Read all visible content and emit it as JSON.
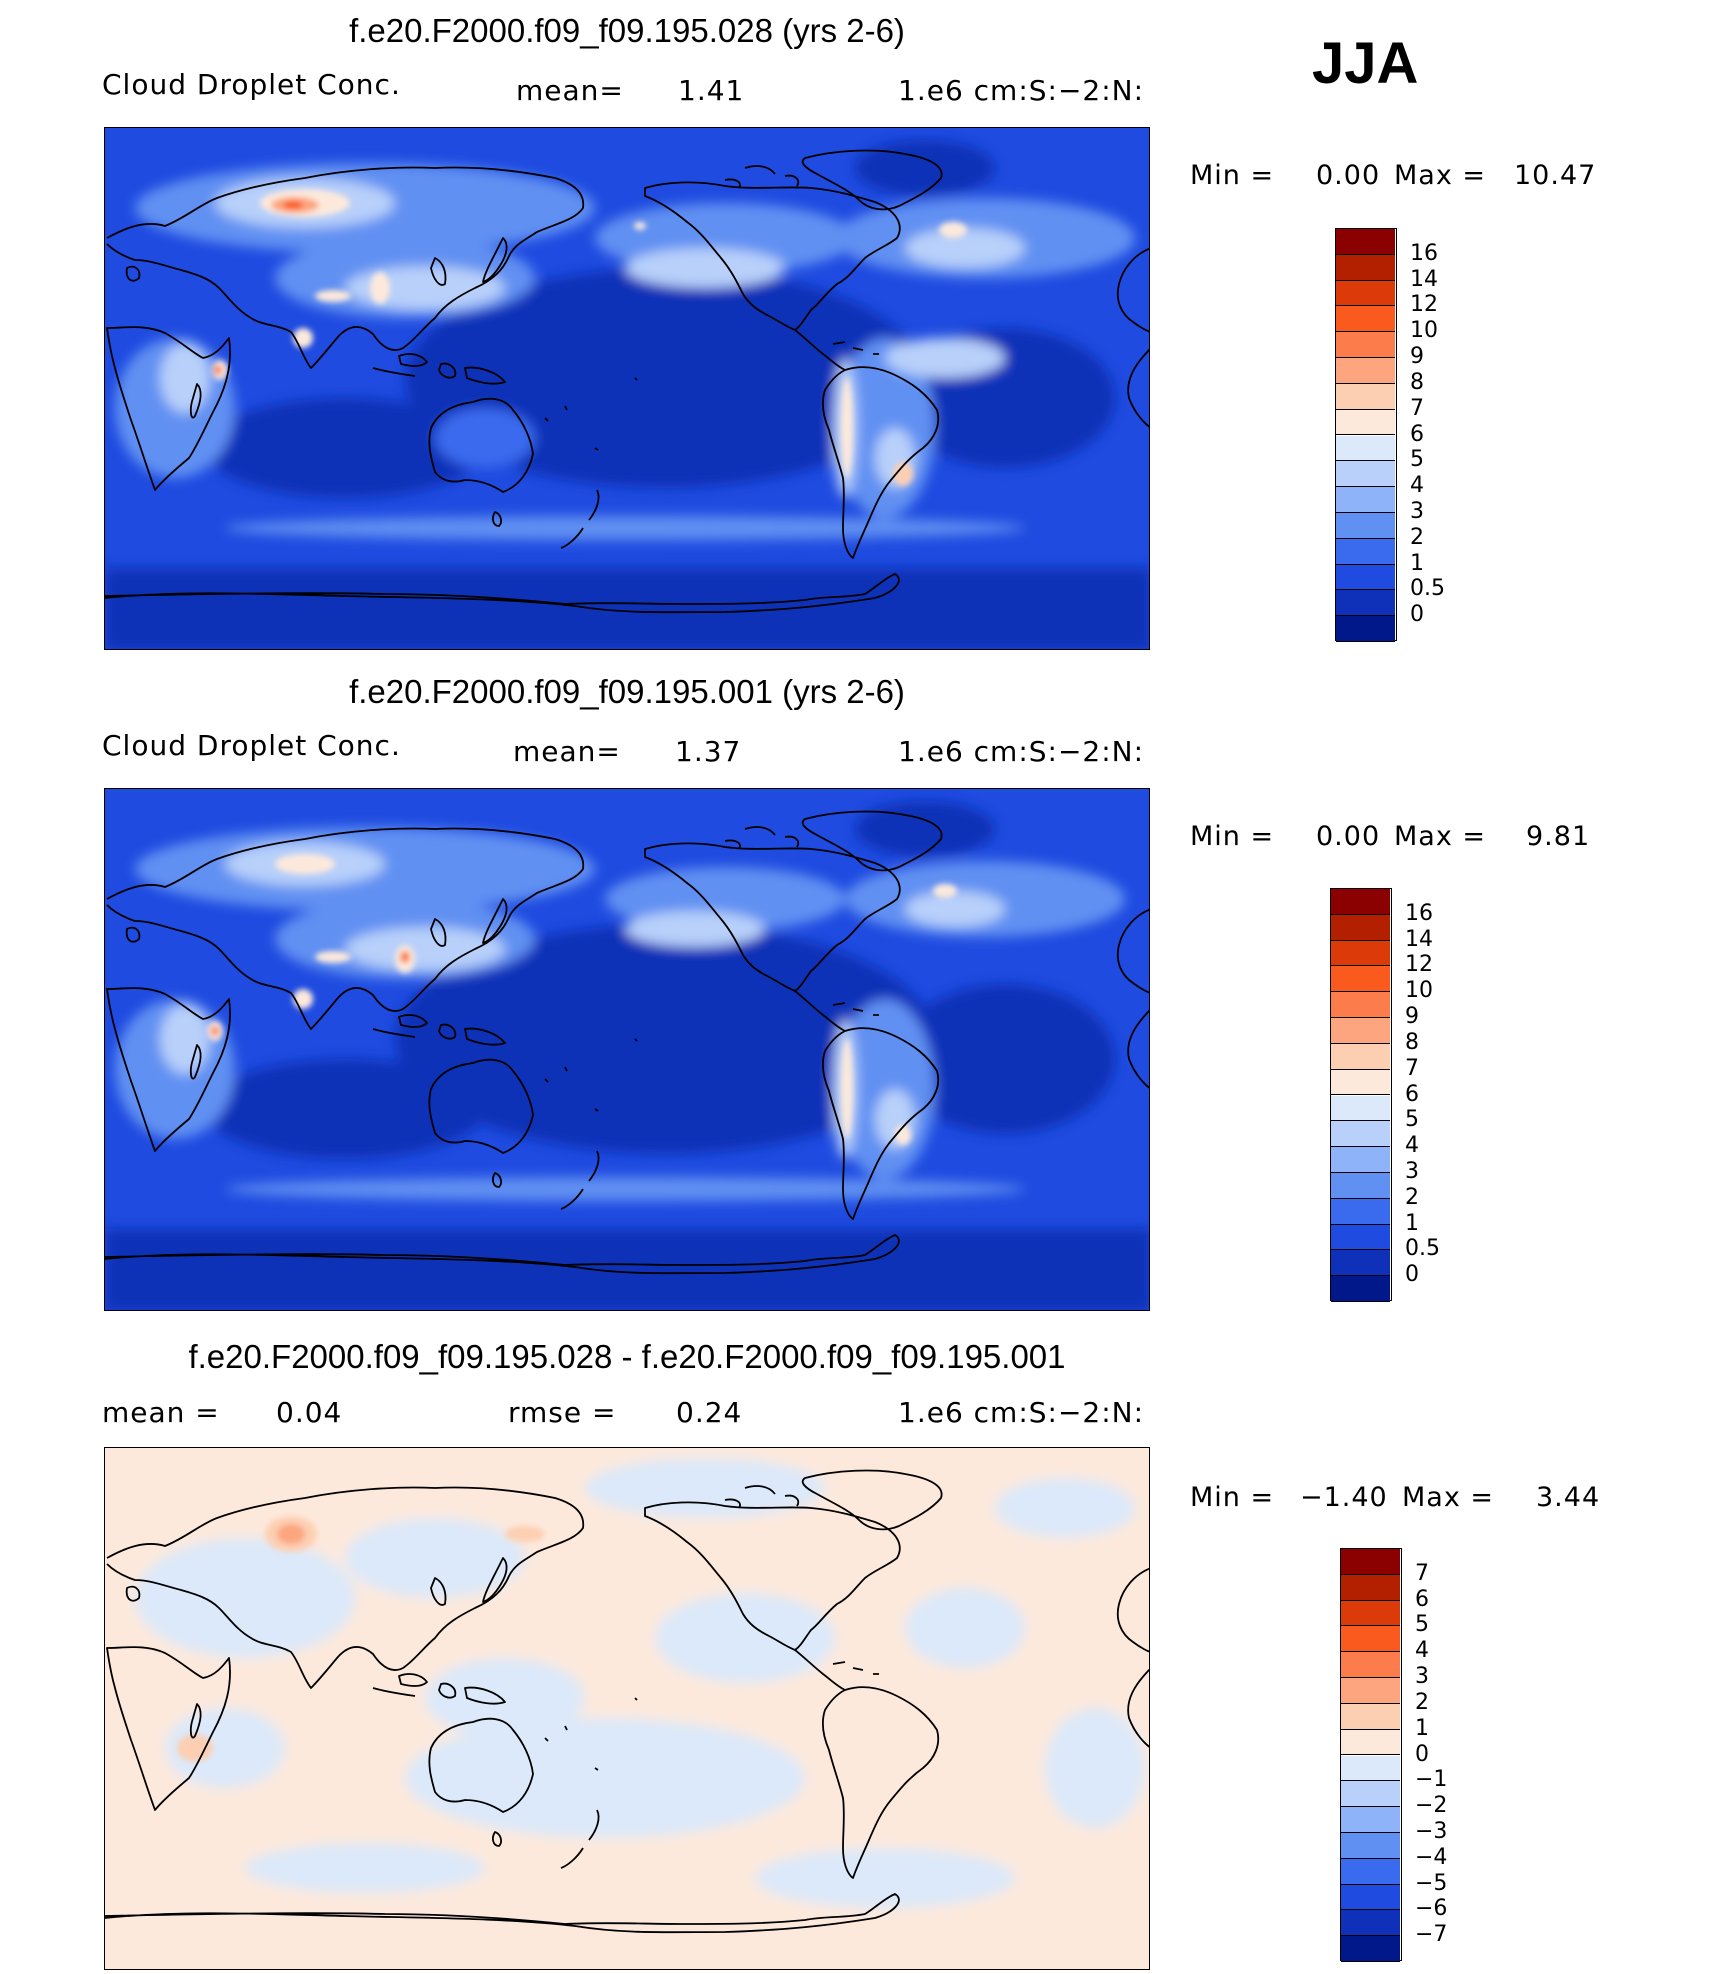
{
  "season": "JJA",
  "panels": [
    {
      "title": "f.e20.F2000.f09_f09.195.028 (yrs 2-6)",
      "left_label": "Cloud Droplet Conc.",
      "mid_label": "mean=",
      "mid_value": "1.41",
      "units": "1.e6 cm:S:−2:N:",
      "minmax": {
        "min_label": "Min =",
        "min_value": "0.00",
        "max_label": "Max =",
        "max_value": "10.47"
      },
      "field": "field-1"
    },
    {
      "title": "f.e20.F2000.f09_f09.195.001 (yrs 2-6)",
      "left_label": "Cloud Droplet Conc.",
      "mid_label": "mean=",
      "mid_value": "1.37",
      "units": "1.e6 cm:S:−2:N:",
      "minmax": {
        "min_label": "Min =",
        "min_value": "0.00",
        "max_label": "Max =",
        "max_value": "9.81"
      },
      "field": "field-2"
    },
    {
      "title": "f.e20.F2000.f09_f09.195.028 - f.e20.F2000.f09_f09.195.001",
      "left_label": "mean =",
      "left_value": "0.04",
      "mid_label": "rmse =",
      "mid_value": "0.24",
      "units": "1.e6 cm:S:−2:N:",
      "minmax": {
        "min_label": "Min =",
        "min_value": "−1.40",
        "max_label": "Max =",
        "max_value": "3.44"
      },
      "field": "field-diff"
    }
  ],
  "colorbar_abs": {
    "labels": [
      "16",
      "14",
      "12",
      "10",
      "9",
      "8",
      "7",
      "6",
      "5",
      "4",
      "3",
      "2",
      "1",
      "0.5",
      "0"
    ],
    "colors": [
      "#8b0000",
      "#b22000",
      "#dd3a0a",
      "#fa5a1e",
      "#fc7c4c",
      "#fca57e",
      "#fdcfb2",
      "#fde9dc",
      "#dce9fa",
      "#b8d0fa",
      "#8fb3f8",
      "#6090f2",
      "#3a6aee",
      "#1f4be0",
      "#0f30b8",
      "#00188a"
    ]
  },
  "colorbar_diff": {
    "labels": [
      "7",
      "6",
      "5",
      "4",
      "3",
      "2",
      "1",
      "0",
      "−1",
      "−2",
      "−3",
      "−4",
      "−5",
      "−6",
      "−7"
    ],
    "colors": [
      "#8b0000",
      "#b22000",
      "#dd3a0a",
      "#fa5a1e",
      "#fc7c4c",
      "#fca57e",
      "#fdcfb2",
      "#fde9dc",
      "#dce9fa",
      "#b8d0fa",
      "#8fb3f8",
      "#6090f2",
      "#3a6aee",
      "#1f4be0",
      "#0f30b8",
      "#00188a"
    ]
  }
}
